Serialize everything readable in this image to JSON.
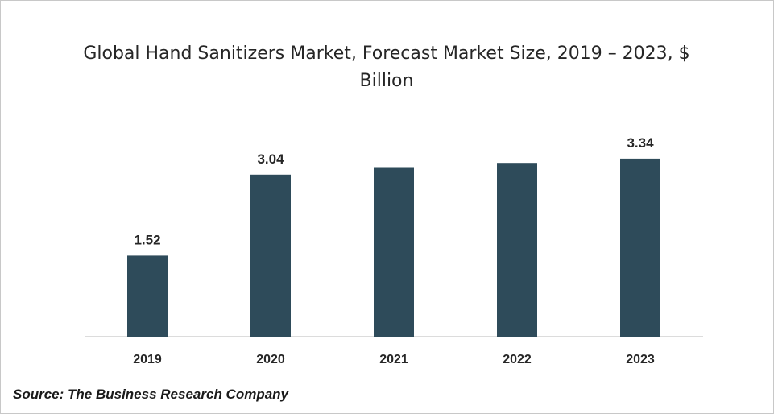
{
  "chart_data": {
    "type": "bar",
    "title": "Global Hand Sanitizers Market, Forecast Market Size, 2019 – 2023, $ Billion",
    "categories": [
      "2019",
      "2020",
      "2021",
      "2022",
      "2023"
    ],
    "values": [
      1.52,
      3.04,
      3.18,
      3.26,
      3.34
    ],
    "data_labels": [
      "1.52",
      "3.04",
      "",
      "",
      "3.34"
    ],
    "xlabel": "",
    "ylabel": "",
    "ylim": [
      0,
      4.5
    ],
    "grid": false,
    "legend": "none",
    "bar_color": "#2e4b5a"
  },
  "source": "Source: The Business Research Company"
}
